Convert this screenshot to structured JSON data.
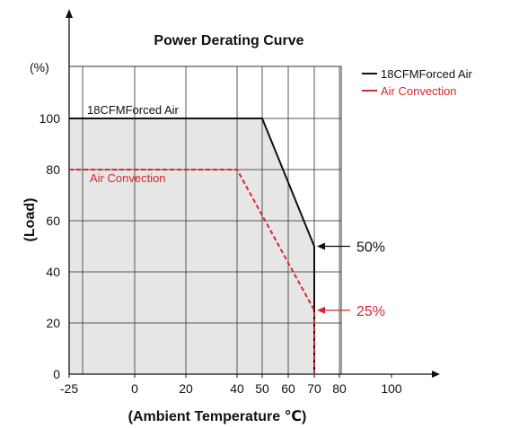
{
  "chart_data": {
    "type": "line",
    "title": "Power Derating Curve",
    "xlabel": "(Ambient Temperature ℃)",
    "ylabel": "(Load)",
    "y_unit": "(%)",
    "xlim": [
      -25,
      100
    ],
    "ylim": [
      0,
      100
    ],
    "x_ticks": [
      -25,
      0,
      20,
      40,
      50,
      60,
      70,
      80,
      100
    ],
    "y_ticks": [
      0,
      20,
      40,
      60,
      80,
      100
    ],
    "x_gridlines": [
      -20,
      0,
      20,
      40,
      50,
      60,
      70,
      80
    ],
    "y_gridlines": [
      20,
      40,
      60,
      80,
      100
    ],
    "grid": true,
    "legend_position": "top-right",
    "shaded_region": {
      "x": [
        -25,
        50,
        70,
        70,
        -25
      ],
      "y": [
        100,
        100,
        50,
        0,
        0
      ],
      "color": "#e6e6e6"
    },
    "series": [
      {
        "name": "18CFMForced Air",
        "legend_label": "18CFMForced Air",
        "inline_label": "18CFMForced Air",
        "color": "#111111",
        "style": "solid",
        "x": [
          -25,
          50,
          70,
          70
        ],
        "y": [
          100,
          100,
          50,
          0
        ]
      },
      {
        "name": "Air Convection",
        "legend_label": "Air Convection",
        "inline_label": "Air Convection",
        "color": "#d9262e",
        "style": "dashed",
        "x": [
          -25,
          40,
          70,
          70
        ],
        "y": [
          80,
          80,
          25,
          0
        ]
      }
    ],
    "annotations": [
      {
        "text": "50%",
        "x": 70,
        "y": 50,
        "color": "#111111"
      },
      {
        "text": "25%",
        "x": 70,
        "y": 25,
        "color": "#d9262e"
      }
    ]
  }
}
